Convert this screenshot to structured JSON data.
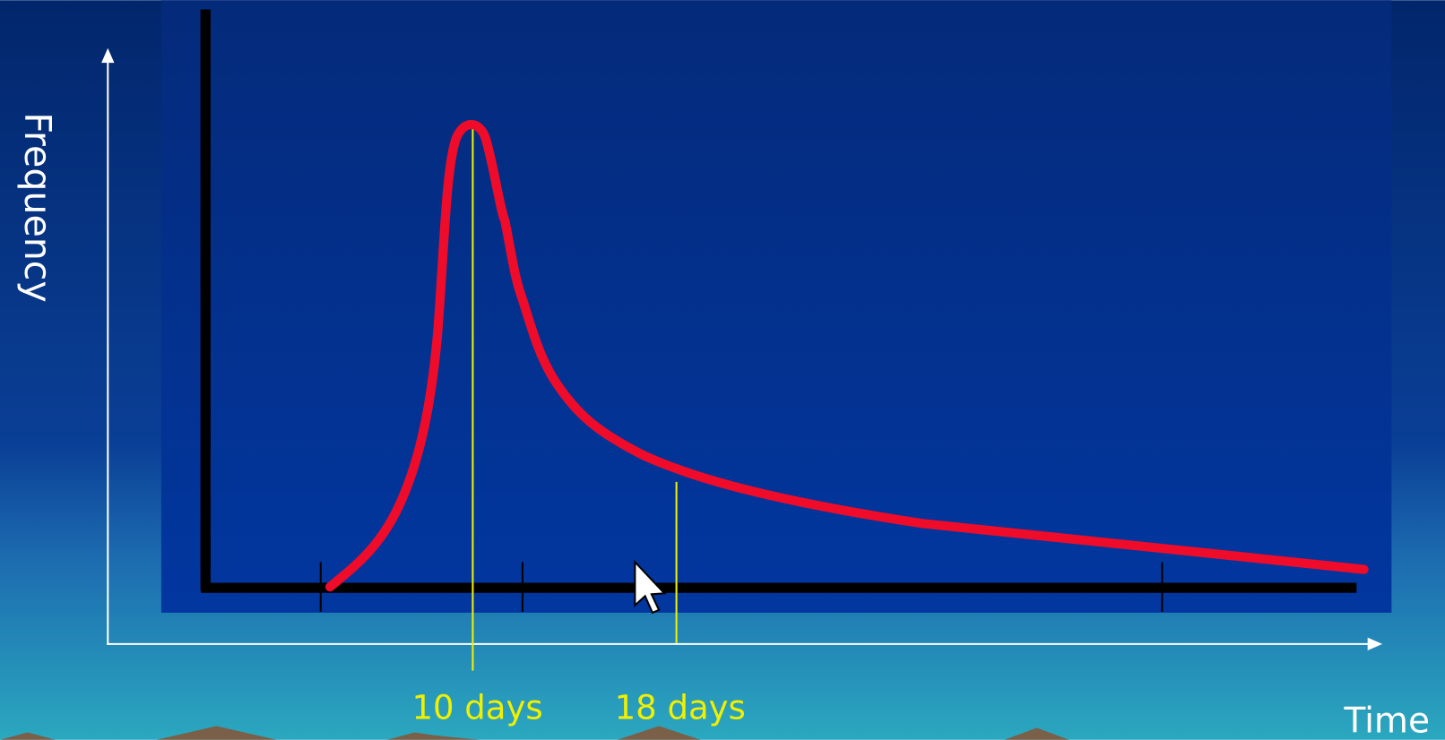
{
  "axes": {
    "y_label": "Frequency",
    "x_label": "Time"
  },
  "markers": [
    {
      "label": "10 days"
    },
    {
      "label": "18 days"
    }
  ]
}
